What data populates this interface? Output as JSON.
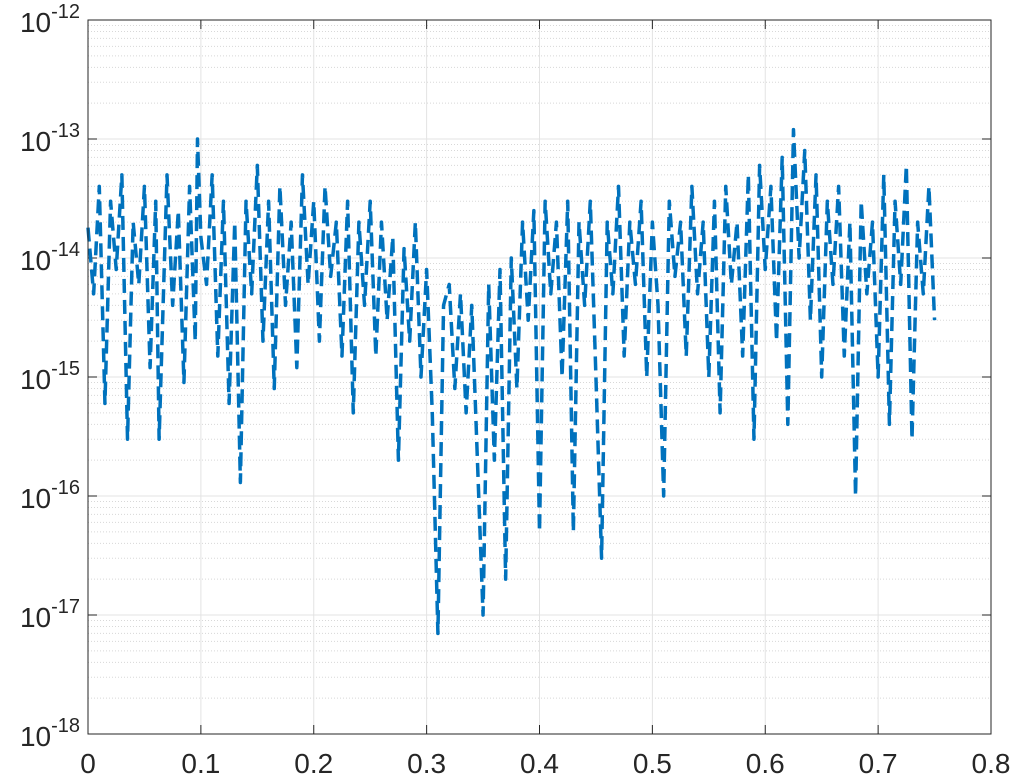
{
  "chart_data": {
    "type": "line",
    "color": "#0072bd",
    "dashed": true,
    "log_y": true,
    "grid": true,
    "minor_grid": true,
    "xlim": [
      0,
      0.8
    ],
    "xticks": [
      0,
      0.1,
      0.2,
      0.3,
      0.4,
      0.5,
      0.6,
      0.7,
      0.8
    ],
    "ylim": [
      1e-18,
      1e-12
    ],
    "yticks": [
      {
        "value": 1e-18,
        "label": "10",
        "exponent": "-18"
      },
      {
        "value": 1e-17,
        "label": "10",
        "exponent": "-17"
      },
      {
        "value": 1e-16,
        "label": "10",
        "exponent": "-16"
      },
      {
        "value": 1e-15,
        "label": "10",
        "exponent": "-15"
      },
      {
        "value": 1e-14,
        "label": "10",
        "exponent": "-14"
      },
      {
        "value": 1e-13,
        "label": "10",
        "exponent": "-13"
      },
      {
        "value": 1e-12,
        "label": "10",
        "exponent": "-12"
      }
    ],
    "x": [
      0,
      0.005,
      0.01,
      0.015,
      0.02,
      0.025,
      0.03,
      0.035,
      0.04,
      0.045,
      0.05,
      0.055,
      0.06,
      0.063,
      0.07,
      0.075,
      0.08,
      0.085,
      0.09,
      0.095,
      0.097,
      0.1,
      0.105,
      0.11,
      0.115,
      0.12,
      0.125,
      0.13,
      0.135,
      0.14,
      0.145,
      0.15,
      0.155,
      0.16,
      0.165,
      0.17,
      0.175,
      0.18,
      0.185,
      0.19,
      0.195,
      0.2,
      0.205,
      0.21,
      0.215,
      0.22,
      0.225,
      0.23,
      0.235,
      0.24,
      0.245,
      0.25,
      0.255,
      0.26,
      0.265,
      0.27,
      0.275,
      0.28,
      0.285,
      0.29,
      0.295,
      0.3,
      0.305,
      0.31,
      0.315,
      0.32,
      0.325,
      0.33,
      0.335,
      0.34,
      0.345,
      0.35,
      0.355,
      0.36,
      0.365,
      0.37,
      0.375,
      0.38,
      0.385,
      0.39,
      0.395,
      0.4,
      0.405,
      0.41,
      0.415,
      0.42,
      0.425,
      0.43,
      0.435,
      0.44,
      0.445,
      0.45,
      0.455,
      0.46,
      0.465,
      0.47,
      0.475,
      0.48,
      0.485,
      0.49,
      0.495,
      0.5,
      0.505,
      0.51,
      0.515,
      0.52,
      0.525,
      0.53,
      0.535,
      0.54,
      0.545,
      0.55,
      0.555,
      0.56,
      0.565,
      0.57,
      0.575,
      0.58,
      0.585,
      0.59,
      0.595,
      0.6,
      0.605,
      0.61,
      0.615,
      0.62,
      0.625,
      0.63,
      0.635,
      0.64,
      0.645,
      0.65,
      0.655,
      0.66,
      0.665,
      0.67,
      0.675,
      0.68,
      0.685,
      0.69,
      0.695,
      0.7,
      0.705,
      0.71,
      0.715,
      0.72,
      0.725,
      0.73,
      0.735,
      0.74,
      0.745,
      0.75
    ],
    "values": [
      1.8e-14,
      5e-15,
      4e-14,
      6e-16,
      3e-14,
      8e-15,
      5e-14,
      3e-16,
      2e-14,
      6e-15,
      4e-14,
      1.2e-15,
      3e-14,
      3e-16,
      5e-14,
      4e-15,
      2.5e-14,
      9e-16,
      4e-14,
      2e-15,
      1e-13,
      1.5e-14,
      6e-15,
      5e-14,
      1.5e-15,
      3e-14,
      6e-16,
      2e-14,
      1.3e-16,
      3e-14,
      5e-15,
      6e-14,
      2e-15,
      3e-14,
      8e-16,
      4e-14,
      4e-15,
      2e-14,
      1.2e-15,
      5e-14,
      6e-15,
      3e-14,
      2e-15,
      4e-14,
      7e-15,
      2e-14,
      1.5e-15,
      3e-14,
      5e-16,
      2e-14,
      4e-15,
      3e-14,
      1.5e-15,
      2e-14,
      3e-15,
      1.5e-14,
      2e-16,
      1.2e-14,
      2e-15,
      2e-14,
      1e-15,
      8e-15,
      5e-16,
      7e-18,
      4e-15,
      6e-15,
      8e-16,
      5e-15,
      5e-16,
      4e-15,
      2e-16,
      1e-17,
      6e-15,
      2e-16,
      8e-15,
      2e-17,
      1e-14,
      8e-16,
      2e-14,
      3e-15,
      2.5e-14,
      5e-17,
      3e-14,
      5e-15,
      2e-14,
      1e-15,
      3e-14,
      5e-17,
      2e-14,
      4e-15,
      3e-14,
      1e-15,
      3e-17,
      2e-14,
      5e-15,
      4e-14,
      1.5e-15,
      2e-14,
      6e-15,
      3e-14,
      1e-15,
      2e-14,
      4e-15,
      1e-16,
      3e-14,
      7e-15,
      2e-14,
      1.5e-15,
      4e-14,
      5e-15,
      2e-14,
      1e-15,
      3e-14,
      5e-16,
      4e-14,
      6e-15,
      2e-14,
      1.5e-15,
      5e-14,
      3e-16,
      6e-14,
      8e-15,
      4e-14,
      2e-15,
      7e-14,
      4e-16,
      1.2e-13,
      1e-14,
      8e-14,
      3e-15,
      5e-14,
      1e-15,
      3e-14,
      6e-15,
      4e-14,
      1.5e-15,
      2e-14,
      1e-16,
      3e-14,
      5e-15,
      2e-14,
      1e-15,
      5e-14,
      4e-16,
      3e-14,
      6e-15,
      6e-14,
      3e-16,
      2e-14,
      5e-15,
      4e-14,
      3e-15
    ]
  }
}
